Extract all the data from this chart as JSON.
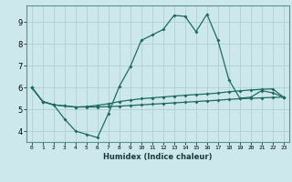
{
  "title": "",
  "xlabel": "Humidex (Indice chaleur)",
  "bg_color": "#cde8ec",
  "line_color": "#1e6b5e",
  "grid_color": "#a8cccc",
  "spine_color": "#5a9090",
  "x_values": [
    0,
    1,
    2,
    3,
    4,
    5,
    6,
    7,
    8,
    9,
    10,
    11,
    12,
    13,
    14,
    15,
    16,
    17,
    18,
    19,
    20,
    21,
    22,
    23
  ],
  "line1": [
    6.0,
    5.35,
    5.2,
    4.55,
    4.0,
    3.85,
    3.7,
    4.8,
    6.05,
    6.95,
    8.15,
    8.4,
    8.65,
    9.3,
    9.25,
    8.55,
    9.35,
    8.15,
    6.35,
    5.5,
    5.55,
    5.85,
    5.75,
    5.55
  ],
  "line2": [
    6.0,
    5.35,
    5.2,
    5.15,
    5.1,
    5.12,
    5.18,
    5.25,
    5.35,
    5.42,
    5.48,
    5.52,
    5.56,
    5.6,
    5.64,
    5.67,
    5.7,
    5.74,
    5.8,
    5.84,
    5.88,
    5.91,
    5.93,
    5.55
  ],
  "line3": [
    6.0,
    5.35,
    5.2,
    5.15,
    5.1,
    5.1,
    5.1,
    5.12,
    5.14,
    5.17,
    5.2,
    5.23,
    5.26,
    5.29,
    5.32,
    5.35,
    5.38,
    5.41,
    5.45,
    5.48,
    5.5,
    5.52,
    5.54,
    5.55
  ],
  "ylim": [
    3.5,
    9.75
  ],
  "xlim": [
    -0.5,
    23.5
  ],
  "yticks": [
    4,
    5,
    6,
    7,
    8,
    9
  ],
  "xticks": [
    0,
    1,
    2,
    3,
    4,
    5,
    6,
    7,
    8,
    9,
    10,
    11,
    12,
    13,
    14,
    15,
    16,
    17,
    18,
    19,
    20,
    21,
    22,
    23
  ]
}
